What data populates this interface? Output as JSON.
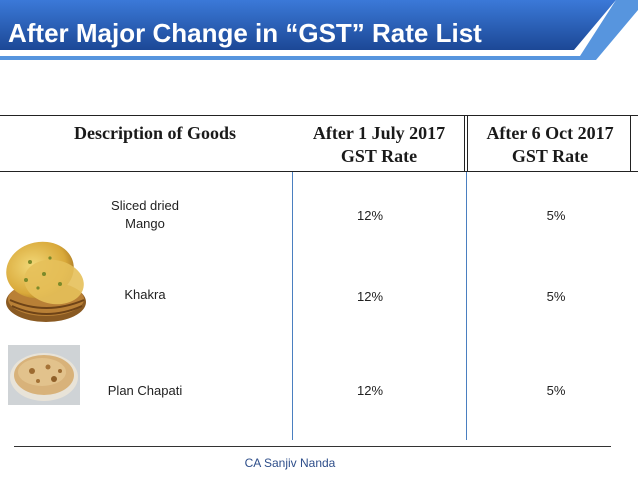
{
  "banner": {
    "title": "After Major Change in “GST” Rate List"
  },
  "table": {
    "headers": [
      {
        "line1": "Description of Goods",
        "line2": ""
      },
      {
        "line1": "After 1 July 2017",
        "line2": "GST Rate"
      },
      {
        "line1": "After 6 Oct 2017",
        "line2": "GST Rate"
      }
    ],
    "rows": [
      {
        "name_line1": "Sliced dried",
        "name_line2": "Mango",
        "rate_july": "12%",
        "rate_oct": "5%"
      },
      {
        "name_line1": "Khakra",
        "name_line2": "",
        "rate_july": "12%",
        "rate_oct": "5%"
      },
      {
        "name_line1": "Plan Chapati",
        "name_line2": "",
        "rate_july": "12%",
        "rate_oct": "5%"
      }
    ]
  },
  "footer": {
    "author": "CA Sanjiv Nanda"
  },
  "colors": {
    "banner_start": "#1f4e9c",
    "banner_end": "#2f6fd0",
    "accent_strip": "#3a82d8",
    "divider": "#4a7fc0"
  }
}
